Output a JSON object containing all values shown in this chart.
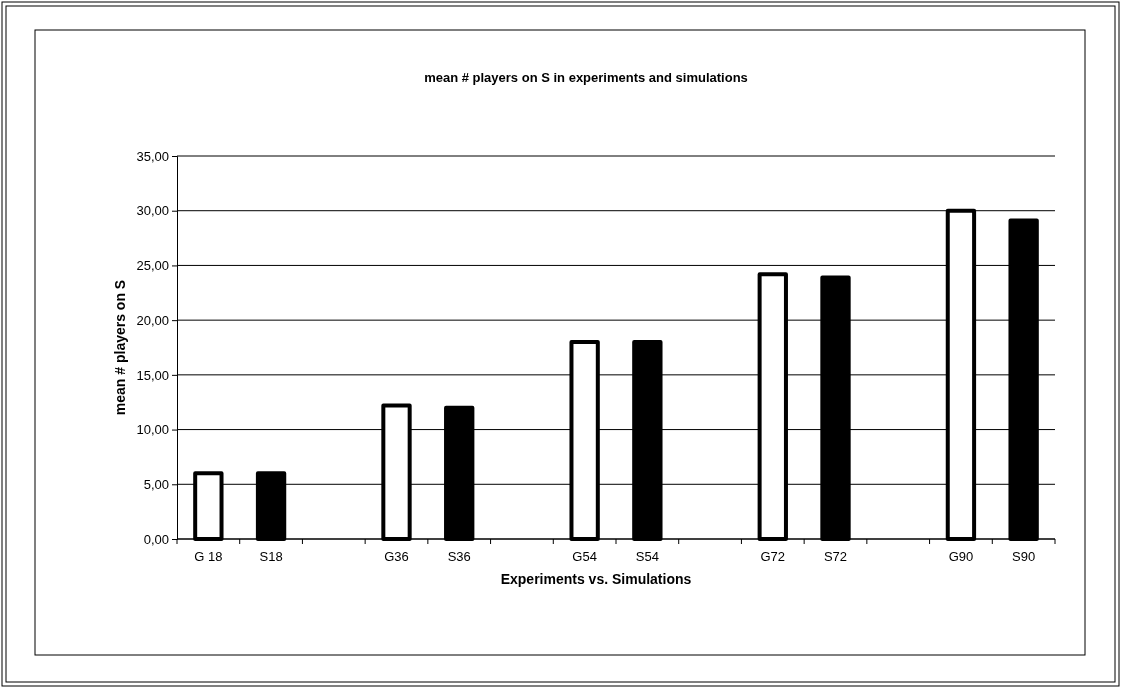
{
  "chart_data": {
    "type": "bar",
    "title": "mean # players on S in experiments and simulations",
    "xlabel": "Experiments vs. Simulations",
    "ylabel": "mean # players on S",
    "categories": [
      "G 18",
      "S18",
      null,
      "G36",
      "S36",
      null,
      "G54",
      "S54",
      null,
      "G72",
      "S72",
      null,
      "G90",
      "S90"
    ],
    "values": [
      6.0,
      6.0,
      null,
      12.2,
      12.0,
      null,
      18.0,
      18.0,
      null,
      24.2,
      23.9,
      null,
      30.0,
      29.1
    ],
    "colors": [
      "#ffffff",
      "#000000",
      null,
      "#ffffff",
      "#000000",
      null,
      "#ffffff",
      "#000000",
      null,
      "#ffffff",
      "#000000",
      null,
      "#ffffff",
      "#000000"
    ],
    "ylim": [
      0,
      35
    ],
    "yticks": [
      {
        "value": 0,
        "label": "0,00"
      },
      {
        "value": 5,
        "label": "5,00"
      },
      {
        "value": 10,
        "label": "10,00"
      },
      {
        "value": 15,
        "label": "15,00"
      },
      {
        "value": 20,
        "label": "20,00"
      },
      {
        "value": 25,
        "label": "25,00"
      },
      {
        "value": 30,
        "label": "30,00"
      },
      {
        "value": 35,
        "label": "35,00"
      }
    ],
    "grid": "y"
  }
}
